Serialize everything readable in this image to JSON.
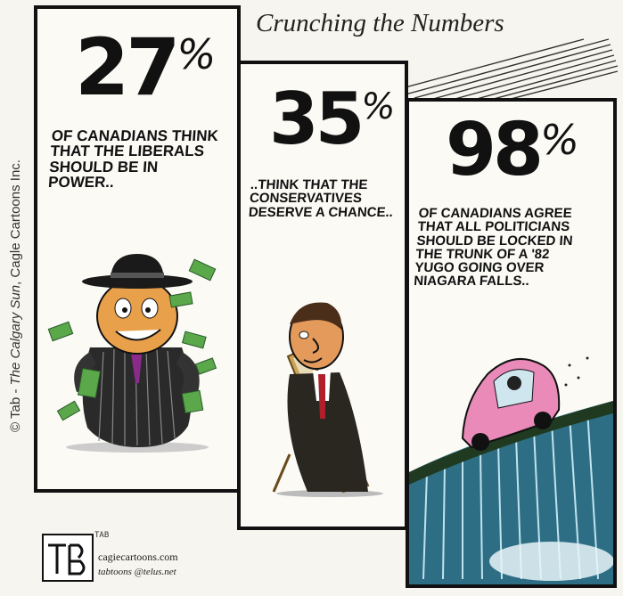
{
  "title": "Crunching the  Numbers",
  "credit": {
    "prefix": "© Tab - ",
    "paper": "The Calgary Sun",
    "suffix": ", Cagle Cartoons Inc."
  },
  "panels": [
    {
      "number": "27",
      "percent": "%",
      "caption": "OF CANADIANS THINK\nTHAT THE LIBERALS\nSHOULD BE IN\nPOWER.."
    },
    {
      "number": "35",
      "percent": "%",
      "caption": "..THINK THAT THE\nCONSERVATIVES\nDESERVE A CHANCE.."
    },
    {
      "number": "98",
      "percent": "%",
      "caption": "OF CANADIANS AGREE\nTHAT ALL POLITICIANS\nSHOULD BE LOCKED IN\nTHE TRUNK OF A '82\nYUGO GOING OVER\nNIAGARA FALLS.."
    }
  ],
  "signature": {
    "tag": "TAB",
    "site": "cagiecartoons.com",
    "email": "tabtoons @telus.net"
  }
}
